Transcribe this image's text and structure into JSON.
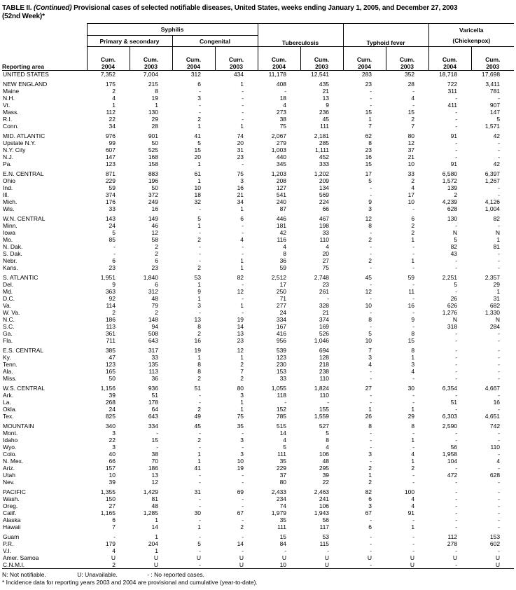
{
  "title": {
    "table_label": "TABLE II.",
    "continued": "(Continued)",
    "text": "Provisional cases of selected notifiable diseases, United States, weeks ending January 1, 2005, and December 27, 2003",
    "week": "(52nd Week)*"
  },
  "header": {
    "reporting_area": "Reporting area",
    "syphilis": "Syphilis",
    "primary_secondary": "Primary & secondary",
    "congenital": "Congenital",
    "tuberculosis": "Tuberculosis",
    "typhoid_fever": "Typhoid fever",
    "varicella": "Varicella",
    "chickenpox": "(Chickenpox)",
    "cum": "Cum.",
    "y2004": "2004",
    "y2003": "2003"
  },
  "table": {
    "columns": [
      "Syphilis Primary & secondary Cum. 2004",
      "Syphilis Primary & secondary Cum. 2003",
      "Syphilis Congenital Cum. 2004",
      "Syphilis Congenital Cum. 2003",
      "Tuberculosis Cum. 2004",
      "Tuberculosis Cum. 2003",
      "Typhoid fever Cum. 2004",
      "Typhoid fever Cum. 2003",
      "Varicella (Chickenpox) Cum. 2004",
      "Varicella (Chickenpox) Cum. 2003"
    ],
    "rows": [
      {
        "a": "UNITED STATES",
        "v": [
          "7,352",
          "7,004",
          "312",
          "434",
          "11,178",
          "12,541",
          "283",
          "352",
          "18,718",
          "17,698"
        ]
      },
      {
        "a": "NEW ENGLAND",
        "s": true,
        "v": [
          "175",
          "215",
          "6",
          "1",
          "408",
          "435",
          "23",
          "28",
          "722",
          "3,411"
        ]
      },
      {
        "a": "Maine",
        "v": [
          "2",
          "8",
          "-",
          "-",
          "-",
          "21",
          "-",
          "-",
          "311",
          "781"
        ]
      },
      {
        "a": "N.H.",
        "v": [
          "4",
          "19",
          "3",
          "-",
          "18",
          "13",
          "-",
          "4",
          "-",
          "-"
        ]
      },
      {
        "a": "Vt.",
        "v": [
          "1",
          "1",
          "-",
          "-",
          "4",
          "9",
          "-",
          "-",
          "411",
          "907"
        ]
      },
      {
        "a": "Mass.",
        "v": [
          "112",
          "130",
          "-",
          "-",
          "273",
          "236",
          "15",
          "15",
          "-",
          "147"
        ]
      },
      {
        "a": "R.I.",
        "v": [
          "22",
          "29",
          "2",
          "-",
          "38",
          "45",
          "1",
          "2",
          "-",
          "5"
        ]
      },
      {
        "a": "Conn.",
        "v": [
          "34",
          "28",
          "1",
          "1",
          "75",
          "111",
          "7",
          "7",
          "-",
          "1,571"
        ]
      },
      {
        "a": "MID. ATLANTIC",
        "s": true,
        "v": [
          "976",
          "901",
          "41",
          "74",
          "2,067",
          "2,181",
          "62",
          "80",
          "91",
          "42"
        ]
      },
      {
        "a": "Upstate N.Y.",
        "v": [
          "99",
          "50",
          "5",
          "20",
          "279",
          "285",
          "8",
          "12",
          "-",
          "-"
        ]
      },
      {
        "a": "N.Y. City",
        "v": [
          "607",
          "525",
          "15",
          "31",
          "1,003",
          "1,111",
          "23",
          "37",
          "-",
          "-"
        ]
      },
      {
        "a": "N.J.",
        "v": [
          "147",
          "168",
          "20",
          "23",
          "440",
          "452",
          "16",
          "21",
          "-",
          "-"
        ]
      },
      {
        "a": "Pa.",
        "v": [
          "123",
          "158",
          "1",
          "-",
          "345",
          "333",
          "15",
          "10",
          "91",
          "42"
        ]
      },
      {
        "a": "E.N. CENTRAL",
        "s": true,
        "v": [
          "871",
          "883",
          "61",
          "75",
          "1,203",
          "1,202",
          "17",
          "33",
          "6,580",
          "6,397"
        ]
      },
      {
        "a": "Ohio",
        "v": [
          "229",
          "196",
          "1",
          "3",
          "208",
          "209",
          "5",
          "2",
          "1,572",
          "1,267"
        ]
      },
      {
        "a": "Ind.",
        "v": [
          "59",
          "50",
          "10",
          "16",
          "127",
          "134",
          "-",
          "4",
          "139",
          "-"
        ]
      },
      {
        "a": "Ill.",
        "v": [
          "374",
          "372",
          "18",
          "21",
          "541",
          "569",
          "-",
          "17",
          "2",
          "-"
        ]
      },
      {
        "a": "Mich.",
        "v": [
          "176",
          "249",
          "32",
          "34",
          "240",
          "224",
          "9",
          "10",
          "4,239",
          "4,126"
        ]
      },
      {
        "a": "Wis.",
        "v": [
          "33",
          "16",
          "-",
          "1",
          "87",
          "66",
          "3",
          "-",
          "628",
          "1,004"
        ]
      },
      {
        "a": "W.N. CENTRAL",
        "s": true,
        "v": [
          "143",
          "149",
          "5",
          "6",
          "446",
          "467",
          "12",
          "6",
          "130",
          "82"
        ]
      },
      {
        "a": "Minn.",
        "v": [
          "24",
          "46",
          "1",
          "-",
          "181",
          "198",
          "8",
          "2",
          "-",
          "-"
        ]
      },
      {
        "a": "Iowa",
        "v": [
          "5",
          "12",
          "-",
          "-",
          "42",
          "33",
          "-",
          "2",
          "N",
          "N"
        ]
      },
      {
        "a": "Mo.",
        "v": [
          "85",
          "58",
          "2",
          "4",
          "116",
          "110",
          "2",
          "1",
          "5",
          "1"
        ]
      },
      {
        "a": "N. Dak.",
        "v": [
          "-",
          "2",
          "-",
          "-",
          "4",
          "4",
          "-",
          "-",
          "82",
          "81"
        ]
      },
      {
        "a": "S. Dak.",
        "v": [
          "-",
          "2",
          "-",
          "-",
          "8",
          "20",
          "-",
          "-",
          "43",
          "-"
        ]
      },
      {
        "a": "Nebr.",
        "v": [
          "6",
          "6",
          "-",
          "1",
          "36",
          "27",
          "2",
          "1",
          "-",
          "-"
        ]
      },
      {
        "a": "Kans.",
        "v": [
          "23",
          "23",
          "2",
          "1",
          "59",
          "75",
          "-",
          "-",
          "-",
          "-"
        ]
      },
      {
        "a": "S. ATLANTIC",
        "s": true,
        "v": [
          "1,951",
          "1,840",
          "53",
          "82",
          "2,512",
          "2,748",
          "45",
          "59",
          "2,251",
          "2,357"
        ]
      },
      {
        "a": "Del.",
        "v": [
          "9",
          "6",
          "1",
          "-",
          "17",
          "23",
          "-",
          "-",
          "5",
          "29"
        ]
      },
      {
        "a": "Md.",
        "v": [
          "363",
          "312",
          "9",
          "12",
          "250",
          "261",
          "12",
          "11",
          "-",
          "1"
        ]
      },
      {
        "a": "D.C.",
        "v": [
          "92",
          "48",
          "1",
          "-",
          "71",
          "-",
          "-",
          "-",
          "26",
          "31"
        ]
      },
      {
        "a": "Va.",
        "v": [
          "114",
          "79",
          "3",
          "1",
          "277",
          "328",
          "10",
          "16",
          "626",
          "682"
        ]
      },
      {
        "a": "W. Va.",
        "v": [
          "2",
          "2",
          "-",
          "-",
          "24",
          "21",
          "-",
          "-",
          "1,276",
          "1,330"
        ]
      },
      {
        "a": "N.C.",
        "v": [
          "186",
          "148",
          "13",
          "19",
          "334",
          "374",
          "8",
          "9",
          "N",
          "N"
        ]
      },
      {
        "a": "S.C.",
        "v": [
          "113",
          "94",
          "8",
          "14",
          "167",
          "169",
          "-",
          "-",
          "318",
          "284"
        ]
      },
      {
        "a": "Ga.",
        "v": [
          "361",
          "508",
          "2",
          "13",
          "416",
          "526",
          "5",
          "8",
          "-",
          "-"
        ]
      },
      {
        "a": "Fla.",
        "v": [
          "711",
          "643",
          "16",
          "23",
          "956",
          "1,046",
          "10",
          "15",
          "-",
          "-"
        ]
      },
      {
        "a": "E.S. CENTRAL",
        "s": true,
        "v": [
          "385",
          "317",
          "19",
          "12",
          "539",
          "694",
          "7",
          "8",
          "-",
          "-"
        ]
      },
      {
        "a": "Ky.",
        "v": [
          "47",
          "33",
          "1",
          "1",
          "123",
          "128",
          "3",
          "1",
          "-",
          "-"
        ]
      },
      {
        "a": "Tenn.",
        "v": [
          "123",
          "135",
          "8",
          "2",
          "230",
          "218",
          "4",
          "3",
          "-",
          "-"
        ]
      },
      {
        "a": "Ala.",
        "v": [
          "165",
          "113",
          "8",
          "7",
          "153",
          "238",
          "-",
          "4",
          "-",
          "-"
        ]
      },
      {
        "a": "Miss.",
        "v": [
          "50",
          "36",
          "2",
          "2",
          "33",
          "110",
          "-",
          "-",
          "-",
          "-"
        ]
      },
      {
        "a": "W.S. CENTRAL",
        "s": true,
        "v": [
          "1,156",
          "936",
          "51",
          "80",
          "1,055",
          "1,824",
          "27",
          "30",
          "6,354",
          "4,667"
        ]
      },
      {
        "a": "Ark.",
        "v": [
          "39",
          "51",
          "-",
          "3",
          "118",
          "110",
          "-",
          "-",
          "-",
          "-"
        ]
      },
      {
        "a": "La.",
        "v": [
          "268",
          "178",
          "-",
          "1",
          "-",
          "-",
          "-",
          "-",
          "51",
          "16"
        ]
      },
      {
        "a": "Okla.",
        "v": [
          "24",
          "64",
          "2",
          "1",
          "152",
          "155",
          "1",
          "1",
          "-",
          "-"
        ]
      },
      {
        "a": "Tex.",
        "v": [
          "825",
          "643",
          "49",
          "75",
          "785",
          "1,559",
          "26",
          "29",
          "6,303",
          "4,651"
        ]
      },
      {
        "a": "MOUNTAIN",
        "s": true,
        "v": [
          "340",
          "334",
          "45",
          "35",
          "515",
          "527",
          "8",
          "8",
          "2,590",
          "742"
        ]
      },
      {
        "a": "Mont.",
        "v": [
          "3",
          "-",
          "-",
          "-",
          "14",
          "5",
          "-",
          "-",
          "-",
          "-"
        ]
      },
      {
        "a": "Idaho",
        "v": [
          "22",
          "15",
          "2",
          "3",
          "4",
          "8",
          "-",
          "1",
          "-",
          "-"
        ]
      },
      {
        "a": "Wyo.",
        "v": [
          "3",
          "-",
          "-",
          "-",
          "5",
          "4",
          "-",
          "-",
          "56",
          "110"
        ]
      },
      {
        "a": "Colo.",
        "v": [
          "40",
          "38",
          "1",
          "3",
          "111",
          "106",
          "3",
          "4",
          "1,958",
          "-"
        ]
      },
      {
        "a": "N. Mex.",
        "v": [
          "66",
          "70",
          "1",
          "10",
          "35",
          "48",
          "-",
          "1",
          "104",
          "4"
        ]
      },
      {
        "a": "Ariz.",
        "v": [
          "157",
          "186",
          "41",
          "19",
          "229",
          "295",
          "2",
          "2",
          "-",
          "-"
        ]
      },
      {
        "a": "Utah",
        "v": [
          "10",
          "13",
          "-",
          "-",
          "37",
          "39",
          "1",
          "-",
          "472",
          "628"
        ]
      },
      {
        "a": "Nev.",
        "v": [
          "39",
          "12",
          "-",
          "-",
          "80",
          "22",
          "2",
          "-",
          "-",
          "-"
        ]
      },
      {
        "a": "PACIFIC",
        "s": true,
        "v": [
          "1,355",
          "1,429",
          "31",
          "69",
          "2,433",
          "2,463",
          "82",
          "100",
          "-",
          "-"
        ]
      },
      {
        "a": "Wash.",
        "v": [
          "150",
          "81",
          "-",
          "-",
          "234",
          "241",
          "6",
          "4",
          "-",
          "-"
        ]
      },
      {
        "a": "Oreg.",
        "v": [
          "27",
          "48",
          "-",
          "-",
          "74",
          "106",
          "3",
          "4",
          "-",
          "-"
        ]
      },
      {
        "a": "Calif.",
        "v": [
          "1,165",
          "1,285",
          "30",
          "67",
          "1,979",
          "1,943",
          "67",
          "91",
          "-",
          "-"
        ]
      },
      {
        "a": "Alaska",
        "v": [
          "6",
          "1",
          "-",
          "-",
          "35",
          "56",
          "-",
          "-",
          "-",
          "-"
        ]
      },
      {
        "a": "Hawaii",
        "v": [
          "7",
          "14",
          "1",
          "2",
          "111",
          "117",
          "6",
          "1",
          "-",
          "-"
        ]
      },
      {
        "a": "Guam",
        "s": true,
        "v": [
          "-",
          "1",
          "-",
          "-",
          "15",
          "53",
          "-",
          "-",
          "112",
          "153"
        ]
      },
      {
        "a": "P.R.",
        "v": [
          "179",
          "204",
          "5",
          "14",
          "84",
          "115",
          "-",
          "-",
          "278",
          "602"
        ]
      },
      {
        "a": "V.I.",
        "v": [
          "4",
          "1",
          "-",
          "-",
          "-",
          "-",
          "-",
          "-",
          "-",
          "-"
        ]
      },
      {
        "a": "Amer. Samoa",
        "v": [
          "U",
          "U",
          "U",
          "U",
          "U",
          "U",
          "U",
          "U",
          "U",
          "U"
        ]
      },
      {
        "a": "C.N.M.I.",
        "v": [
          "2",
          "U",
          "-",
          "U",
          "10",
          "U",
          "-",
          "U",
          "-",
          "U"
        ]
      }
    ]
  },
  "footnotes": {
    "n": "N: Not notifiable.",
    "u": "U: Unavailable.",
    "dash": "- : No reported cases.",
    "asterisk": "* Incidence data for reporting years 2003 and 2004 are provisional and cumulative (year-to-date)."
  }
}
